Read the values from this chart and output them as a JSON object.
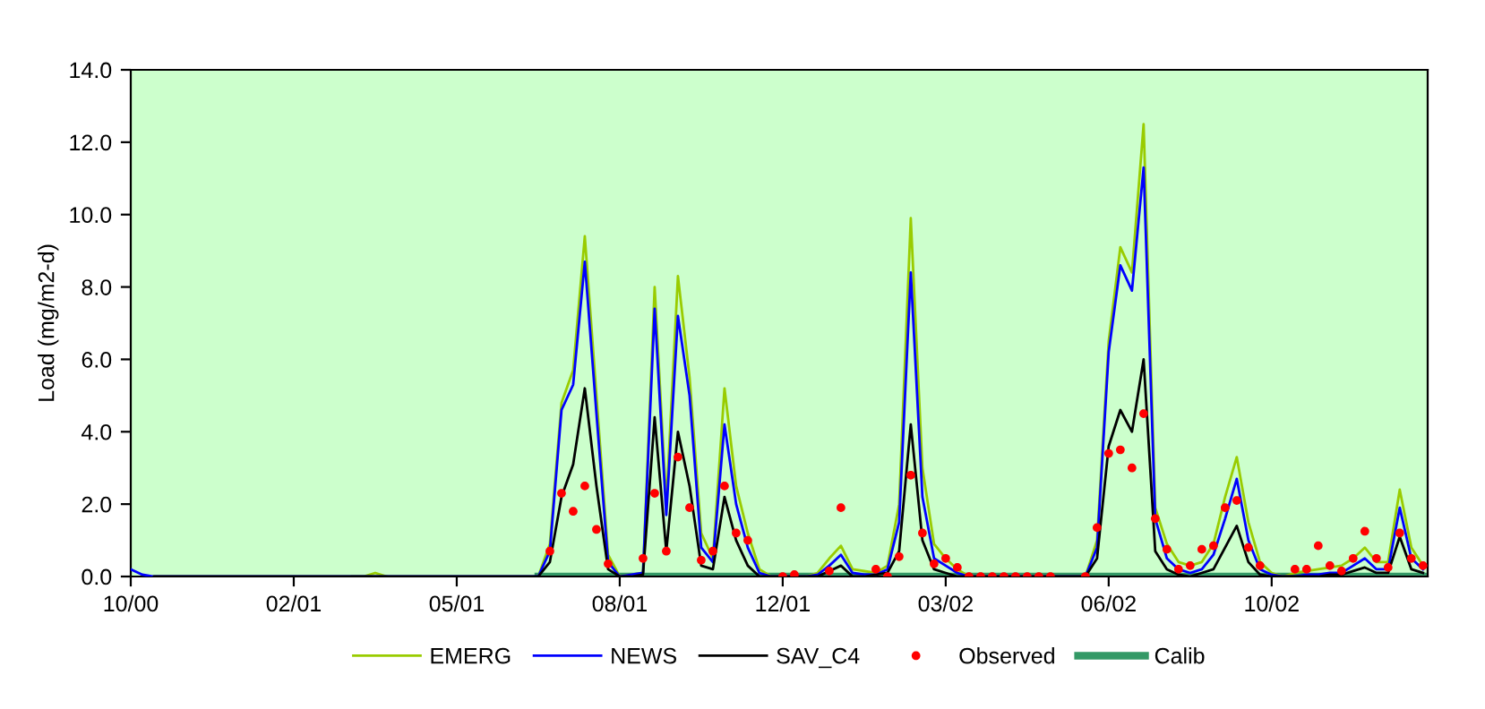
{
  "chart_data": {
    "type": "line",
    "ylabel": "Load (mg/m2-d)",
    "categories": [
      "10/00",
      null,
      null,
      null,
      null,
      null,
      null,
      null,
      null,
      null,
      null,
      null,
      null,
      null,
      "02/01",
      null,
      null,
      null,
      null,
      null,
      null,
      null,
      null,
      null,
      null,
      null,
      null,
      null,
      "05/01",
      null,
      null,
      null,
      null,
      null,
      null,
      null,
      null,
      null,
      null,
      null,
      null,
      null,
      "08/01",
      null,
      null,
      null,
      null,
      null,
      null,
      null,
      null,
      null,
      null,
      null,
      null,
      null,
      "12/01",
      null,
      null,
      null,
      null,
      null,
      null,
      null,
      null,
      null,
      null,
      null,
      null,
      null,
      "03/02",
      null,
      null,
      null,
      null,
      null,
      null,
      null,
      null,
      null,
      null,
      null,
      null,
      null,
      "06/02",
      null,
      null,
      null,
      null,
      null,
      null,
      null,
      null,
      null,
      null,
      null,
      null,
      null,
      "10/02",
      null,
      null,
      null,
      null,
      null,
      null,
      null,
      null,
      null,
      null,
      null,
      null,
      null
    ],
    "ylim": [
      0,
      14
    ],
    "yticks": [
      {
        "value": 0,
        "label": "0.0"
      },
      {
        "value": 2,
        "label": "2.0"
      },
      {
        "value": 4,
        "label": "4.0"
      },
      {
        "value": 6,
        "label": "6.0"
      },
      {
        "value": 8,
        "label": "8.0"
      },
      {
        "value": 10,
        "label": "10.0"
      },
      {
        "value": 12,
        "label": "12.0"
      },
      {
        "value": 14,
        "label": "14.0"
      }
    ],
    "legend": "bottom",
    "series": [
      {
        "name": "EMERG",
        "color": "#99cc00",
        "values": [
          null,
          null,
          null,
          null,
          null,
          null,
          null,
          null,
          null,
          null,
          null,
          null,
          null,
          null,
          null,
          null,
          null,
          null,
          null,
          0,
          0,
          0.1,
          0,
          null,
          null,
          null,
          null,
          null,
          null,
          null,
          null,
          null,
          null,
          null,
          null,
          0,
          0.9,
          4.8,
          5.7,
          9.4,
          5.0,
          0.6,
          0,
          0.05,
          0.1,
          8.0,
          2.0,
          8.3,
          5.5,
          1.2,
          0.5,
          5.2,
          2.5,
          1.2,
          0.2,
          0,
          0,
          0,
          0,
          0.1,
          0.5,
          0.85,
          0.2,
          0.15,
          0.1,
          0.3,
          2.0,
          9.9,
          3.0,
          0.9,
          0.5,
          0.2,
          0,
          0,
          0,
          0,
          0,
          0,
          0,
          0,
          0,
          0,
          0,
          1.0,
          6.5,
          9.1,
          8.4,
          12.5,
          1.9,
          0.9,
          0.4,
          0.3,
          0.4,
          0.9,
          2.2,
          3.3,
          1.5,
          0.4,
          0.1,
          0,
          0.1,
          0.15,
          0.2,
          0.25,
          0.3,
          0.5,
          0.8,
          0.4,
          0.4,
          2.4,
          0.8,
          0.3
        ]
      },
      {
        "name": "NEWS",
        "color": "#0000ff",
        "values": [
          0.2,
          0.05,
          0,
          0,
          0,
          0,
          0,
          0,
          0,
          0,
          0,
          0,
          0,
          0,
          0,
          0,
          0,
          0,
          0,
          0,
          0,
          0,
          0,
          0,
          0,
          0,
          0,
          0,
          0,
          0,
          0,
          0,
          0,
          0,
          0,
          0,
          0.7,
          4.6,
          5.3,
          8.7,
          4.5,
          0.4,
          0,
          0.05,
          0.1,
          7.4,
          1.7,
          7.2,
          5.0,
          0.8,
          0.4,
          4.2,
          2.0,
          0.8,
          0.1,
          0,
          0,
          0,
          0,
          0.05,
          0.3,
          0.6,
          0.1,
          0.05,
          0.05,
          0.2,
          1.5,
          8.4,
          2.2,
          0.5,
          0.3,
          0.1,
          0,
          0,
          0,
          0,
          0,
          0,
          0,
          0,
          0,
          0,
          0,
          0.8,
          6.2,
          8.6,
          7.9,
          11.3,
          1.6,
          0.5,
          0.2,
          0.1,
          0.2,
          0.6,
          1.6,
          2.7,
          1.0,
          0.2,
          0.05,
          0,
          0,
          0.05,
          0.05,
          0.1,
          0.1,
          0.3,
          0.5,
          0.2,
          0.2,
          1.9,
          0.5,
          0.2
        ]
      },
      {
        "name": "SAV_C4",
        "color": "#000000",
        "values": [
          null,
          null,
          0,
          0,
          0,
          0,
          0,
          0,
          0,
          0,
          0,
          0,
          0,
          0,
          0,
          0,
          0,
          0,
          0,
          0,
          0,
          0,
          0,
          0,
          0,
          0,
          0,
          0,
          0,
          0,
          0,
          0,
          0,
          0,
          0,
          0,
          0.4,
          2.2,
          3.1,
          5.2,
          2.5,
          0.2,
          0,
          0,
          0.05,
          4.4,
          0.7,
          4.0,
          2.5,
          0.3,
          0.2,
          2.2,
          1.0,
          0.3,
          0,
          0,
          0,
          0,
          0,
          0,
          0.15,
          0.3,
          0,
          0,
          0.05,
          0.1,
          0.7,
          4.2,
          1.0,
          0.2,
          0.1,
          0,
          0,
          0,
          0,
          0,
          0,
          0,
          0,
          0,
          0,
          0,
          0,
          0.5,
          3.6,
          4.6,
          4.0,
          6.0,
          0.7,
          0.2,
          0.05,
          0,
          0.1,
          0.2,
          0.8,
          1.4,
          0.4,
          0.05,
          0,
          0,
          0,
          0,
          0,
          0.05,
          0.05,
          0.15,
          0.25,
          0.1,
          0.1,
          1.1,
          0.2,
          0.1
        ]
      },
      {
        "name": "Observed",
        "type": "scatter",
        "color": "#ff0000",
        "marker": "circle",
        "values": [
          null,
          null,
          null,
          null,
          null,
          null,
          null,
          null,
          null,
          null,
          null,
          null,
          null,
          null,
          null,
          null,
          null,
          null,
          null,
          null,
          null,
          null,
          null,
          null,
          null,
          null,
          null,
          null,
          null,
          null,
          null,
          null,
          null,
          null,
          null,
          null,
          0.7,
          2.3,
          1.8,
          2.5,
          1.3,
          0.35,
          null,
          null,
          0.5,
          2.3,
          0.7,
          3.3,
          1.9,
          0.45,
          0.7,
          2.5,
          1.2,
          1.0,
          null,
          null,
          0,
          0.05,
          null,
          null,
          0.15,
          1.9,
          null,
          null,
          0.2,
          0,
          0.55,
          2.8,
          1.2,
          0.35,
          0.5,
          0.25,
          0,
          0,
          0,
          0,
          0,
          0,
          0,
          0,
          null,
          null,
          0,
          1.35,
          3.4,
          3.5,
          3.0,
          4.5,
          1.6,
          0.75,
          0.2,
          0.3,
          0.75,
          0.85,
          1.9,
          2.1,
          0.8,
          0.3,
          null,
          null,
          0.2,
          0.2,
          0.85,
          0.3,
          0.15,
          0.5,
          1.25,
          0.5,
          0.25,
          1.2,
          0.5,
          0.3
        ]
      },
      {
        "name": "Calib",
        "color": "#339966",
        "values": [
          null,
          null,
          null,
          null,
          null,
          null,
          null,
          null,
          null,
          null,
          null,
          null,
          null,
          null,
          null,
          null,
          null,
          null,
          null,
          null,
          null,
          null,
          null,
          null,
          null,
          null,
          null,
          null,
          null,
          null,
          null,
          null,
          null,
          null,
          null,
          0,
          0,
          0,
          0,
          0,
          0,
          0,
          0,
          0,
          0,
          0,
          0,
          0,
          0,
          0,
          0,
          0,
          0,
          0,
          0,
          0,
          0,
          0,
          0,
          0,
          0,
          0,
          0,
          0,
          0,
          0,
          0,
          0,
          0,
          0,
          0,
          0,
          0,
          0,
          0,
          0,
          0,
          0,
          0,
          0,
          0,
          0,
          0,
          0,
          0,
          0,
          0,
          0,
          0,
          0,
          0,
          0,
          0,
          0,
          0,
          0,
          0,
          0,
          0,
          0,
          0,
          0,
          0,
          0,
          0,
          0,
          0,
          0,
          0,
          0,
          0,
          0
        ]
      }
    ]
  }
}
